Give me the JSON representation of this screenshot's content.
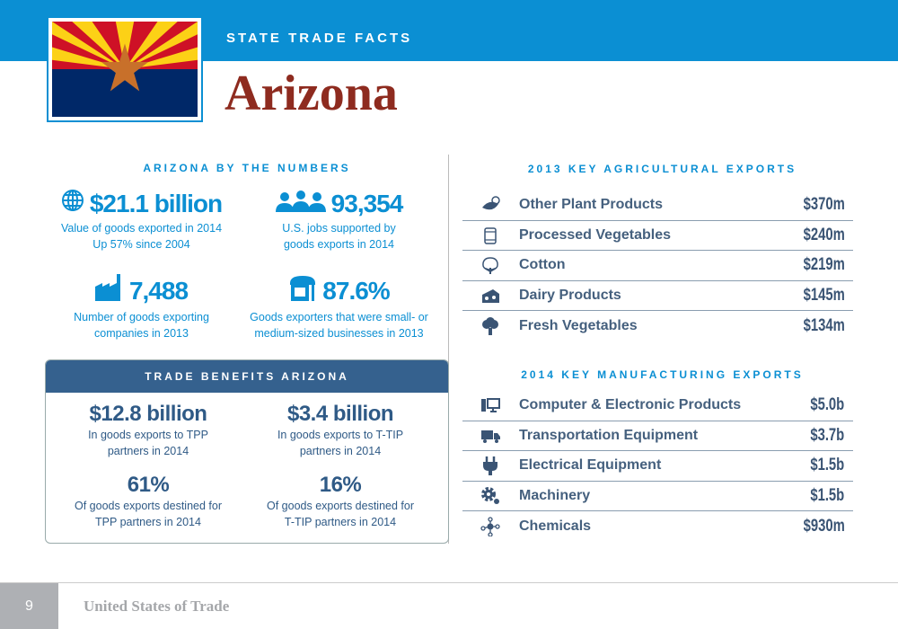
{
  "header": {
    "kicker": "STATE TRADE FACTS",
    "title": "Arizona",
    "bar_color": "#0b8fd3",
    "title_color": "#8e2b1f"
  },
  "by_numbers": {
    "heading": "ARIZONA BY THE NUMBERS",
    "stats": [
      {
        "icon": "globe-icon",
        "value": "$21.1 billion",
        "line1": "Value of goods exported in 2014",
        "line2": "Up 57% since 2004"
      },
      {
        "icon": "workers-icon",
        "value": "93,354",
        "line1": "U.S. jobs supported by",
        "line2": "goods exports in 2014"
      },
      {
        "icon": "factory-icon",
        "value": "7,488",
        "line1": "Number of goods exporting",
        "line2": "companies in 2013"
      },
      {
        "icon": "storefront-icon",
        "value": "87.6%",
        "line1": "Goods exporters that were small- or",
        "line2": "medium-sized businesses in 2013"
      }
    ]
  },
  "trade_benefits": {
    "heading": "TRADE BENEFITS ARIZONA",
    "stats": [
      {
        "value": "$12.8 billion",
        "line1": "In goods exports to TPP",
        "line2": "partners in 2014"
      },
      {
        "value": "$3.4 billion",
        "line1": "In goods exports to T-TIP",
        "line2": "partners in 2014"
      },
      {
        "value": "61%",
        "line1": "Of goods exports destined for",
        "line2": "TPP partners in 2014"
      },
      {
        "value": "16%",
        "line1": "Of goods exports destined for",
        "line2": "T-TIP partners in 2014"
      }
    ]
  },
  "agricultural": {
    "heading": "2013 KEY AGRICULTURAL EXPORTS",
    "items": [
      {
        "icon": "leaves-icon",
        "label": "Other Plant Products",
        "value": "$370m"
      },
      {
        "icon": "can-icon",
        "label": "Processed Vegetables",
        "value": "$240m"
      },
      {
        "icon": "cotton-icon",
        "label": "Cotton",
        "value": "$219m"
      },
      {
        "icon": "cheese-icon",
        "label": "Dairy Products",
        "value": "$145m"
      },
      {
        "icon": "broccoli-icon",
        "label": "Fresh Vegetables",
        "value": "$134m"
      }
    ]
  },
  "manufacturing": {
    "heading": "2014 KEY MANUFACTURING EXPORTS",
    "items": [
      {
        "icon": "computer-icon",
        "label": "Computer & Electronic Products",
        "value": "$5.0b"
      },
      {
        "icon": "truck-icon",
        "label": "Transportation Equipment",
        "value": "$3.7b"
      },
      {
        "icon": "plug-icon",
        "label": "Electrical Equipment",
        "value": "$1.5b"
      },
      {
        "icon": "gears-icon",
        "label": "Machinery",
        "value": "$1.5b"
      },
      {
        "icon": "molecule-icon",
        "label": "Chemicals",
        "value": "$930m"
      }
    ]
  },
  "footer": {
    "page": "9",
    "title": "United States of Trade"
  }
}
